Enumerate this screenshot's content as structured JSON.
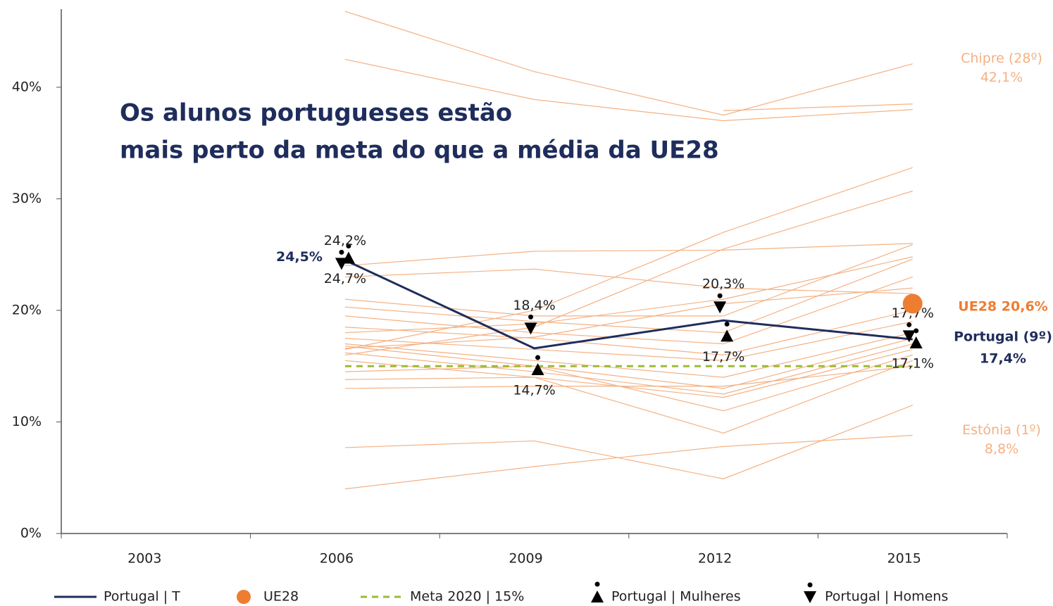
{
  "chart_data": {
    "type": "line",
    "title_lines": [
      "Os alunos portugueses estão",
      "mais perto da meta do que a média da UE28"
    ],
    "categories": [
      "2003",
      "2006",
      "2009",
      "2012",
      "2015"
    ],
    "ylim": [
      0,
      47
    ],
    "yticks": [
      {
        "value": 0,
        "label": "0%"
      },
      {
        "value": 10,
        "label": "10%"
      },
      {
        "value": 20,
        "label": "20%"
      },
      {
        "value": 30,
        "label": "30%"
      },
      {
        "value": 40,
        "label": "40%"
      }
    ],
    "series": [
      {
        "name": "Portugal | T",
        "color": "#1f2d5c",
        "style": "solid",
        "marker": "none",
        "values": [
          null,
          24.5,
          16.6,
          19.1,
          17.4
        ],
        "value_labels": [
          null,
          "24,5%",
          null,
          null,
          "17,4%"
        ],
        "end_label": "Portugal (9º)"
      },
      {
        "name": "UE28",
        "color": "#ed7d31",
        "style": "none",
        "marker": "circle",
        "values": [
          null,
          null,
          null,
          null,
          20.6
        ],
        "value_labels": [
          null,
          null,
          null,
          null,
          "20,6%"
        ]
      },
      {
        "name": "Meta 2020 | 15%",
        "color": "#9bbb33",
        "style": "dashed",
        "marker": "none",
        "values": [
          null,
          15,
          15,
          15,
          15
        ]
      },
      {
        "name": "Portugal | Mulheres",
        "color": "#000000",
        "style": "none",
        "marker": "triangle-up",
        "values": [
          null,
          24.7,
          14.7,
          17.7,
          17.1
        ],
        "value_labels": [
          null,
          "24,7%",
          "14,7%",
          "17,7%",
          "17,1%"
        ]
      },
      {
        "name": "Portugal | Homens",
        "color": "#000000",
        "style": "none",
        "marker": "triangle-down",
        "values": [
          null,
          24.2,
          18.4,
          20.3,
          17.7
        ],
        "value_labels": [
          null,
          "24,2%",
          "18,4%",
          "20,3%",
          "17,7%"
        ]
      }
    ],
    "country_color": "#f4b183",
    "country_lines": [
      {
        "label": "Chipre (28º)",
        "values": [
          null,
          46.8,
          41.4,
          37.5,
          42.1
        ],
        "value_labels": [
          null,
          null,
          null,
          null,
          "42,1%"
        ]
      },
      {
        "values": [
          null,
          42.5,
          38.9,
          37.0,
          38.0
        ]
      },
      {
        "values": [
          null,
          null,
          null,
          37.9,
          38.5
        ]
      },
      {
        "values": [
          null,
          16.5,
          20.0,
          27.0,
          32.8
        ]
      },
      {
        "values": [
          null,
          16.0,
          18.5,
          25.5,
          30.7
        ]
      },
      {
        "values": [
          null,
          24.0,
          25.3,
          25.4,
          26.0
        ]
      },
      {
        "values": [
          null,
          23.0,
          23.7,
          22.0,
          21.5
        ]
      },
      {
        "values": [
          null,
          21.0,
          19.5,
          19.5,
          25.9
        ]
      },
      {
        "values": [
          null,
          20.3,
          19.0,
          18.0,
          24.6
        ]
      },
      {
        "values": [
          null,
          19.5,
          18.0,
          17.0,
          23.0
        ]
      },
      {
        "values": [
          null,
          18.5,
          17.5,
          16.0,
          20.0
        ]
      },
      {
        "values": [
          null,
          17.5,
          16.5,
          15.5,
          19.0
        ]
      },
      {
        "values": [
          null,
          17.0,
          15.5,
          14.0,
          18.0
        ]
      },
      {
        "values": [
          null,
          16.8,
          15.0,
          13.0,
          17.5
        ]
      },
      {
        "values": [
          null,
          16.2,
          14.5,
          12.5,
          17.0
        ]
      },
      {
        "values": [
          null,
          15.5,
          14.0,
          12.2,
          16.5
        ]
      },
      {
        "values": [
          null,
          14.5,
          15.0,
          11.0,
          16.0
        ]
      },
      {
        "values": [
          null,
          13.8,
          14.0,
          9.0,
          15.5
        ]
      },
      {
        "values": [
          null,
          13.0,
          13.2,
          13.2,
          15.0
        ]
      },
      {
        "values": [
          null,
          18.0,
          18.8,
          21.0,
          24.8
        ]
      },
      {
        "values": [
          null,
          16.6,
          17.6,
          20.6,
          22.0
        ]
      },
      {
        "values": [
          null,
          7.7,
          8.3,
          4.9,
          11.5
        ]
      },
      {
        "label": "Estónia (1º)",
        "values": [
          null,
          4.0,
          6.0,
          7.8,
          8.8
        ],
        "value_labels": [
          null,
          null,
          null,
          null,
          "8,8%"
        ]
      }
    ]
  }
}
